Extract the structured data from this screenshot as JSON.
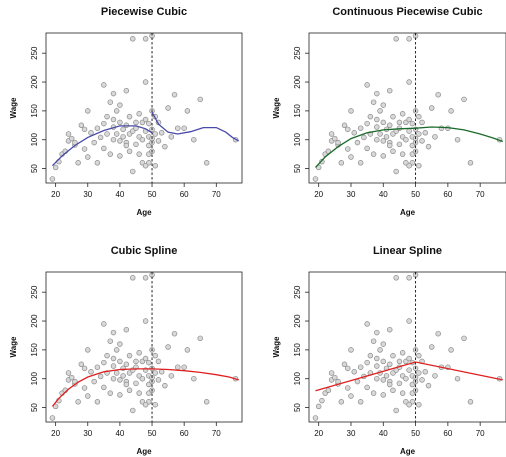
{
  "chart_data": [
    {
      "type": "scatter",
      "title": "Piecewise Cubic",
      "xlabel": "Age",
      "ylabel": "Wage",
      "xlim": [
        17,
        78
      ],
      "ylim": [
        25,
        285
      ],
      "xticks": [
        "20",
        "30",
        "40",
        "50",
        "60",
        "70"
      ],
      "xtick_values": [
        20,
        30,
        40,
        50,
        60,
        70
      ],
      "yticks": [
        "50",
        "100",
        "150",
        "200",
        "250"
      ],
      "ytick_values": [
        50,
        100,
        150,
        200,
        250
      ],
      "knot": 50,
      "fit_color": "#4a4aa8",
      "fit": [
        {
          "x": [
            19,
            22,
            26,
            30,
            35,
            40,
            45,
            48,
            50
          ],
          "y": [
            55,
            72,
            90,
            104,
            116,
            124,
            124,
            119,
            112
          ]
        },
        {
          "x": [
            50,
            52,
            55,
            58,
            62,
            66,
            70,
            73,
            75,
            77
          ],
          "y": [
            148,
            127,
            113,
            110,
            114,
            121,
            121,
            113,
            104,
            98
          ]
        }
      ]
    },
    {
      "type": "scatter",
      "title": "Continuous Piecewise Cubic",
      "xlabel": "Age",
      "ylabel": "Wage",
      "xlim": [
        17,
        78
      ],
      "ylim": [
        25,
        285
      ],
      "xticks": [
        "20",
        "30",
        "40",
        "50",
        "60",
        "70"
      ],
      "xtick_values": [
        20,
        30,
        40,
        50,
        60,
        70
      ],
      "yticks": [
        "50",
        "100",
        "150",
        "200",
        "250"
      ],
      "ytick_values": [
        50,
        100,
        150,
        200,
        250
      ],
      "knot": 50,
      "fit_color": "#1a6b2a",
      "fit": [
        {
          "x": [
            19,
            22,
            26,
            30,
            35,
            40,
            45,
            50,
            55,
            60,
            65,
            70,
            74,
            77
          ],
          "y": [
            52,
            70,
            88,
            102,
            112,
            117,
            119,
            120,
            122,
            121,
            117,
            110,
            103,
            97
          ]
        }
      ]
    },
    {
      "type": "scatter",
      "title": "Cubic Spline",
      "xlabel": "Age",
      "ylabel": "Wage",
      "xlim": [
        17,
        78
      ],
      "ylim": [
        25,
        285
      ],
      "xticks": [
        "20",
        "30",
        "40",
        "50",
        "60",
        "70"
      ],
      "xtick_values": [
        20,
        30,
        40,
        50,
        60,
        70
      ],
      "yticks": [
        "50",
        "100",
        "150",
        "200",
        "250"
      ],
      "ytick_values": [
        50,
        100,
        150,
        200,
        250
      ],
      "knot": 50,
      "fit_color": "#e02020",
      "fit": [
        {
          "x": [
            19,
            21,
            24,
            27,
            30,
            35,
            40,
            45,
            50,
            55,
            60,
            65,
            70,
            74,
            77
          ],
          "y": [
            52,
            66,
            82,
            94,
            103,
            112,
            116,
            117,
            117,
            116,
            114,
            111,
            107,
            103,
            98
          ]
        }
      ]
    },
    {
      "type": "scatter",
      "title": "Linear Spline",
      "xlabel": "Age",
      "ylabel": "Wage",
      "xlim": [
        17,
        78
      ],
      "ylim": [
        25,
        285
      ],
      "xticks": [
        "20",
        "30",
        "40",
        "50",
        "60",
        "70"
      ],
      "xtick_values": [
        20,
        30,
        40,
        50,
        60,
        70
      ],
      "yticks": [
        "50",
        "100",
        "150",
        "200",
        "250"
      ],
      "ytick_values": [
        50,
        100,
        150,
        200,
        250
      ],
      "knot": 50,
      "fit_color": "#e02020",
      "fit": [
        {
          "x": [
            19,
            50,
            77
          ],
          "y": [
            79,
            129,
            98
          ]
        }
      ]
    }
  ],
  "points": {
    "x": [
      19,
      20,
      21,
      22,
      23,
      24,
      25,
      26,
      27,
      28,
      29,
      30,
      30,
      31,
      32,
      33,
      33,
      34,
      35,
      35,
      36,
      36,
      37,
      37,
      38,
      38,
      38,
      39,
      39,
      40,
      40,
      40,
      40,
      41,
      41,
      42,
      42,
      42,
      43,
      43,
      43,
      44,
      44,
      45,
      45,
      45,
      46,
      46,
      46,
      47,
      47,
      47,
      48,
      48,
      48,
      48,
      49,
      49,
      49,
      49,
      49,
      50,
      50,
      50,
      50,
      50,
      51,
      51,
      51,
      52,
      52,
      53,
      54,
      55,
      56,
      57,
      58,
      60,
      61,
      63,
      65,
      67,
      76,
      44,
      38,
      35,
      42,
      48,
      50,
      29,
      26,
      24
    ],
    "y": [
      32,
      52,
      62,
      75,
      80,
      98,
      102,
      91,
      60,
      125,
      84,
      150,
      70,
      112,
      95,
      120,
      60,
      104,
      195,
      85,
      110,
      140,
      75,
      165,
      122,
      100,
      180,
      110,
      150,
      130,
      98,
      160,
      72,
      118,
      105,
      185,
      125,
      95,
      140,
      110,
      80,
      275,
      115,
      130,
      120,
      92,
      145,
      105,
      75,
      100,
      130,
      60,
      275,
      200,
      135,
      115,
      90,
      128,
      105,
      75,
      60,
      280,
      150,
      118,
      102,
      80,
      140,
      110,
      55,
      130,
      98,
      112,
      88,
      155,
      105,
      178,
      120,
      120,
      150,
      100,
      170,
      60,
      100,
      45,
      135,
      128,
      90,
      55,
      95,
      118,
      95,
      110
    ]
  }
}
